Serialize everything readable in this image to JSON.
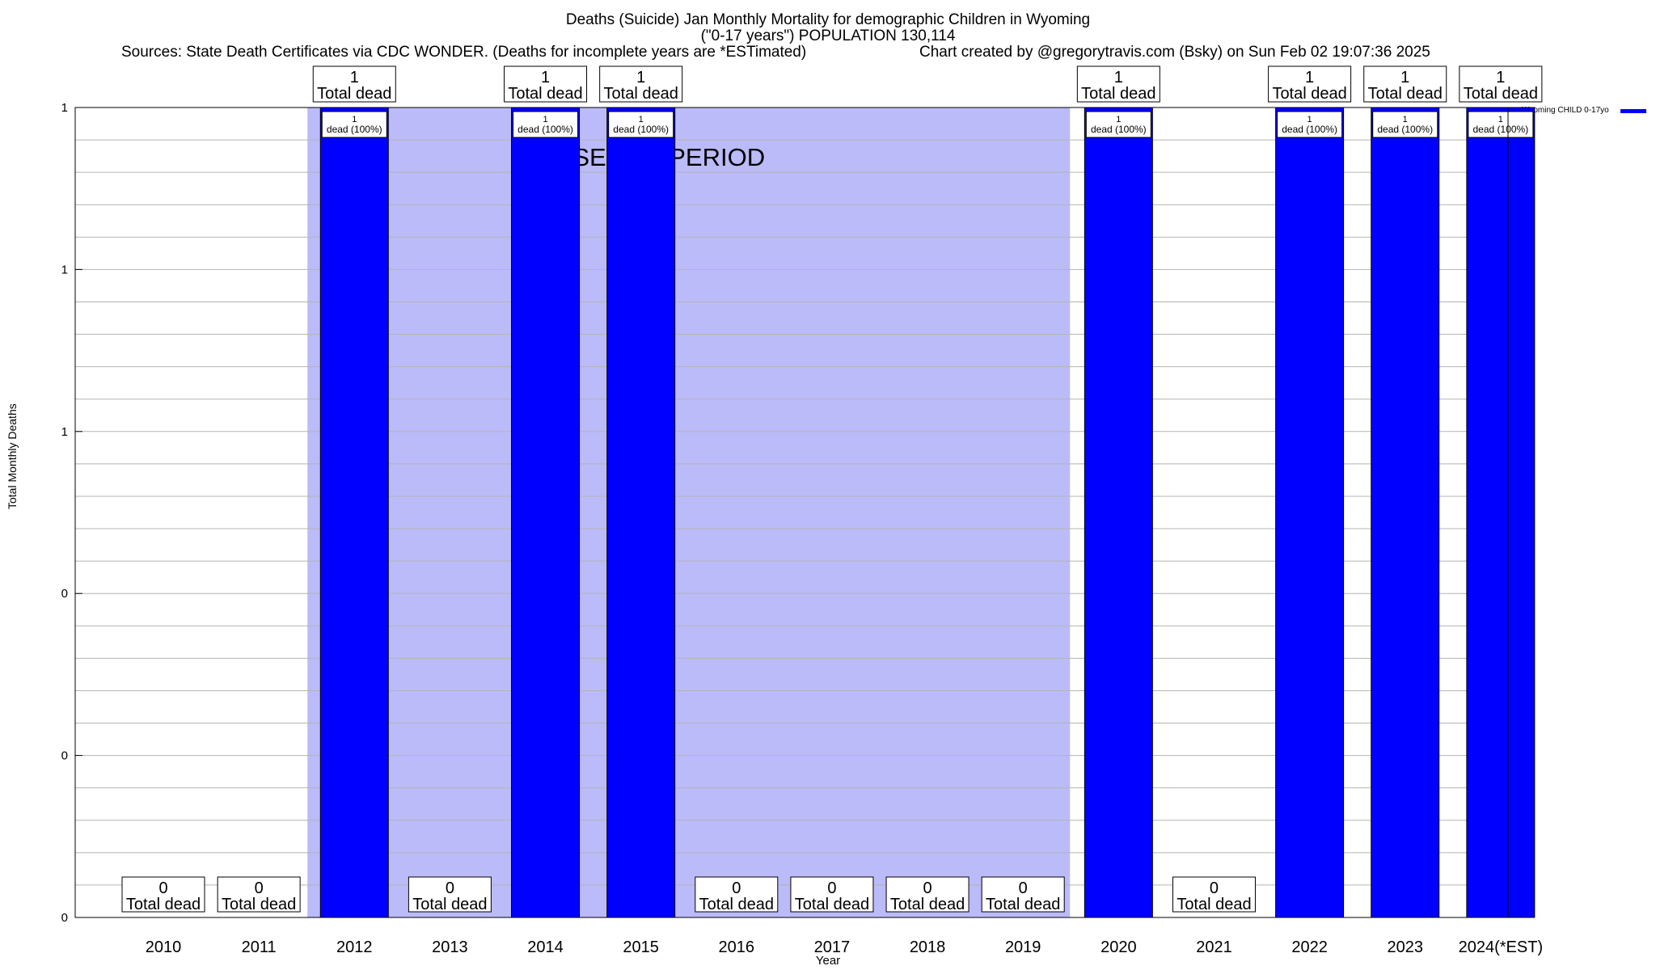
{
  "chart_data": {
    "type": "bar",
    "title": "Deaths (Suicide) Jan Monthly Mortality for demographic Children in Wyoming",
    "subtitle": "(\"0-17 years\") POPULATION 130,114",
    "sources": "Sources: State Death Certificates via CDC WONDER. (Deaths for incomplete years are *ESTimated)",
    "credit": "Chart created by @gregorytravis.com (Bsky) on Sun Feb 02 19:07:36 2025",
    "xlabel": "Year",
    "ylabel": "Total Monthly Deaths",
    "ylim": [
      0,
      1
    ],
    "y_tick_labels": [
      "0",
      "0",
      "0",
      "1",
      "1",
      "1"
    ],
    "grid": true,
    "legend_position": "top-right",
    "shaded_region": {
      "label": "BASELINE PERIOD",
      "from": "2012",
      "to": "2019",
      "color": "#bbbbf9"
    },
    "categories": [
      "2010",
      "2011",
      "2012",
      "2013",
      "2014",
      "2015",
      "2016",
      "2017",
      "2018",
      "2019",
      "2020",
      "2021",
      "2022",
      "2023",
      "2024(*EST)"
    ],
    "series": [
      {
        "name": "Wyoming CHILD 0-17yo",
        "color": "#0000ff",
        "values": [
          0,
          0,
          1,
          0,
          1,
          1,
          0,
          0,
          0,
          0,
          1,
          0,
          1,
          1,
          1
        ]
      }
    ],
    "total_label": "Total dead",
    "inner_label_top": "1",
    "inner_label_bottom": "dead (100%)"
  }
}
